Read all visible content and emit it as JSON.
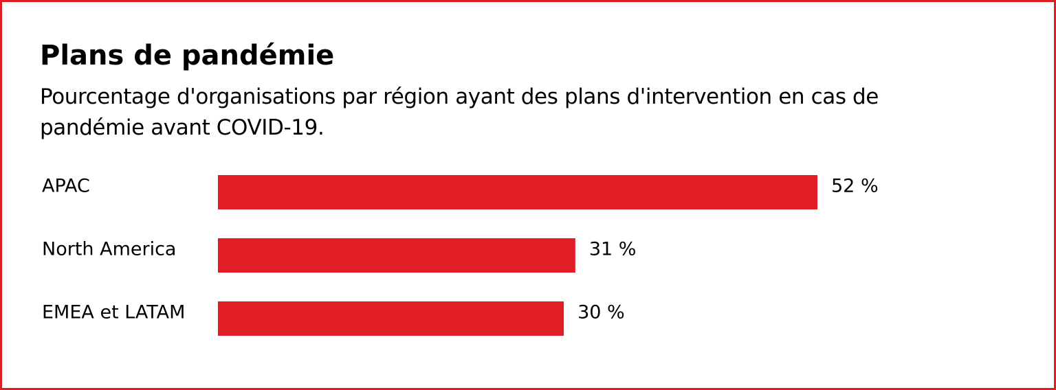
{
  "chart_data": {
    "type": "bar",
    "orientation": "horizontal",
    "title": "Plans de pandémie",
    "subtitle": "Pourcentage d'organisations par région ayant des plans d'intervention en cas de pandémie avant COVID-19.",
    "categories": [
      "APAC",
      "North America",
      "EMEA et LATAM"
    ],
    "values": [
      52,
      31,
      30
    ],
    "value_labels": [
      "52 %",
      "31 %",
      "30 %"
    ],
    "unit": "%",
    "xlim": [
      0,
      52
    ],
    "grid": false,
    "legend": "none",
    "bar_color": "#e11d25",
    "frame_color": "#e11d25"
  }
}
